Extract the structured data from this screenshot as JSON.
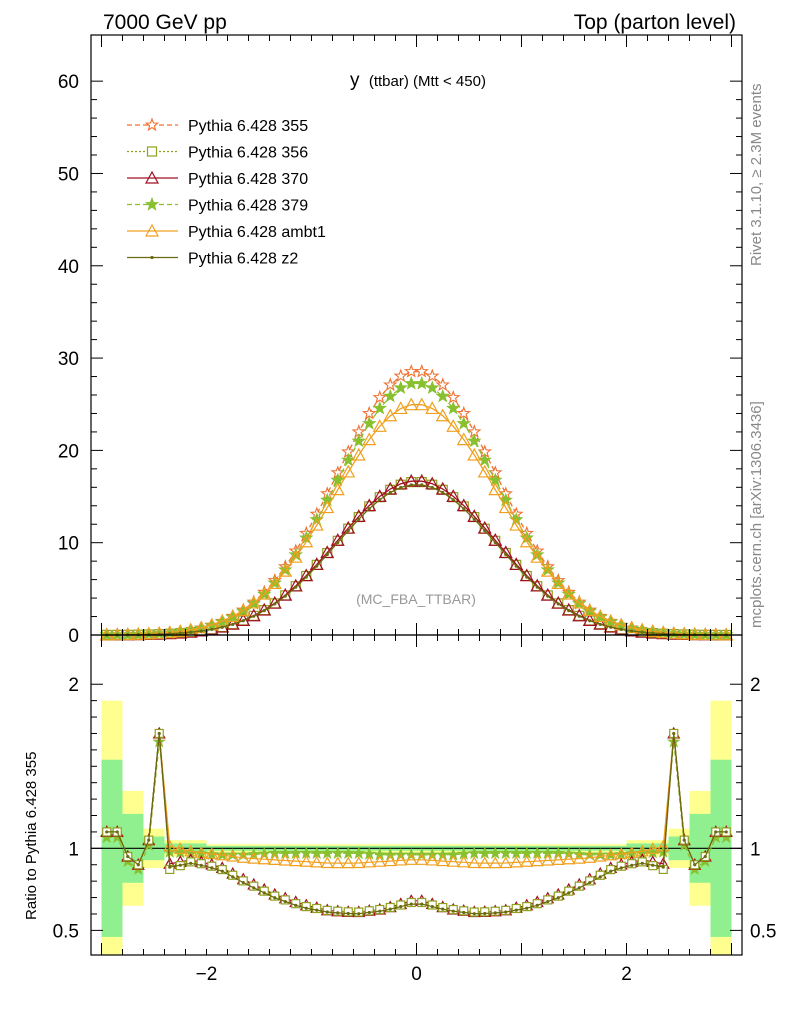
{
  "header": {
    "left": "7000 GeV pp",
    "right": "Top (parton level)"
  },
  "side_labels": {
    "rivet": "Rivet 3.1.10, ≥ 2.3M events",
    "mcplots": "mcplots.cern.ch [arXiv:1306.3436]"
  },
  "colors": {
    "s355": "#f07030",
    "s356": "#90a020",
    "s370": "#a01020",
    "s379": "#88c030",
    "ambt1": "#f0a020",
    "z2": "#6a6a10",
    "band_green": "#90f090",
    "band_yellow": "#ffff90"
  },
  "chart_data": [
    {
      "type": "line",
      "title": "y (ttbar) (Mtt < 450)",
      "title_main": "y",
      "title_sub": "(ttbar) (Mtt < 450)",
      "watermark": "(MC_FBA_TTBAR)",
      "xlim": [
        -3.1,
        3.1
      ],
      "ylim": [
        0,
        65
      ],
      "ytick_labels": [
        "0",
        "10",
        "20",
        "30",
        "40",
        "50",
        "60"
      ],
      "yticks": [
        0,
        10,
        20,
        30,
        40,
        50,
        60
      ],
      "legend_position": "top-left",
      "x_centers": [
        -2.95,
        -2.85,
        -2.75,
        -2.65,
        -2.55,
        -2.45,
        -2.35,
        -2.25,
        -2.15,
        -2.05,
        -1.95,
        -1.85,
        -1.75,
        -1.65,
        -1.55,
        -1.45,
        -1.35,
        -1.25,
        -1.15,
        -1.05,
        -0.95,
        -0.85,
        -0.75,
        -0.65,
        -0.55,
        -0.45,
        -0.35,
        -0.25,
        -0.15,
        -0.05,
        0.05,
        0.15,
        0.25,
        0.35,
        0.45,
        0.55,
        0.65,
        0.75,
        0.85,
        0.95,
        1.05,
        1.15,
        1.25,
        1.35,
        1.45,
        1.55,
        1.65,
        1.75,
        1.85,
        1.95,
        2.05,
        2.15,
        2.25,
        2.35,
        2.45,
        2.55,
        2.65,
        2.75,
        2.85,
        2.95
      ],
      "series": [
        {
          "name": "Pythia 6.428 355",
          "key": "s355",
          "marker": "star-open",
          "dash": "5,3"
        },
        {
          "name": "Pythia 6.428 356",
          "key": "s356",
          "marker": "square-open",
          "dash": "2,2"
        },
        {
          "name": "Pythia 6.428 370",
          "key": "s370",
          "marker": "triangle-open",
          "dash": ""
        },
        {
          "name": "Pythia 6.428 379",
          "key": "s379",
          "marker": "star-filled",
          "dash": "5,3"
        },
        {
          "name": "Pythia 6.428 ambt1",
          "key": "ambt1",
          "marker": "triangle-open",
          "dash": ""
        },
        {
          "name": "Pythia 6.428 z2",
          "key": "z2",
          "marker": "dot",
          "dash": ""
        }
      ],
      "main_model": {
        "s355": {
          "peak": 28.6,
          "sigma": 0.76
        },
        "s379": {
          "peak": 27.3,
          "sigma": 0.76
        },
        "ambt1": {
          "peak": 25.0,
          "sigma": 0.78
        },
        "s370": {
          "peak": 16.7,
          "sigma": 0.76
        },
        "s356": {
          "peak": 16.6,
          "sigma": 0.76
        },
        "z2": {
          "peak": 16.3,
          "sigma": 0.76
        }
      }
    },
    {
      "type": "line",
      "ylabel": "Ratio to Pythia 6.428 355",
      "xlim": [
        -3.1,
        3.1
      ],
      "ylim": [
        0.35,
        2.3
      ],
      "yticks": [
        0.5,
        1,
        2
      ],
      "ytick_labels": [
        "0.5",
        "1",
        "2"
      ],
      "xticks": [
        -2,
        0,
        2
      ],
      "xtick_labels": [
        "−2",
        "0",
        "2"
      ],
      "reference_line": 1,
      "ratio_points": {
        "s379": [
          0.98,
          0.97,
          0.96,
          0.96,
          0.97,
          0.97,
          0.97,
          0.97,
          0.96,
          0.96
        ],
        "ambt1": [
          1.02,
          0.98,
          0.96,
          0.94,
          0.93,
          0.92,
          0.91,
          0.91,
          0.92,
          0.93
        ],
        "s370": [
          0.9,
          0.93,
          0.89,
          0.8,
          0.72,
          0.66,
          0.62,
          0.61,
          0.63,
          0.68
        ],
        "s356": [
          0.86,
          0.92,
          0.88,
          0.79,
          0.71,
          0.65,
          0.62,
          0.61,
          0.63,
          0.67
        ],
        "z2": [
          0.88,
          0.91,
          0.87,
          0.78,
          0.7,
          0.64,
          0.61,
          0.6,
          0.62,
          0.66
        ]
      }
    }
  ]
}
